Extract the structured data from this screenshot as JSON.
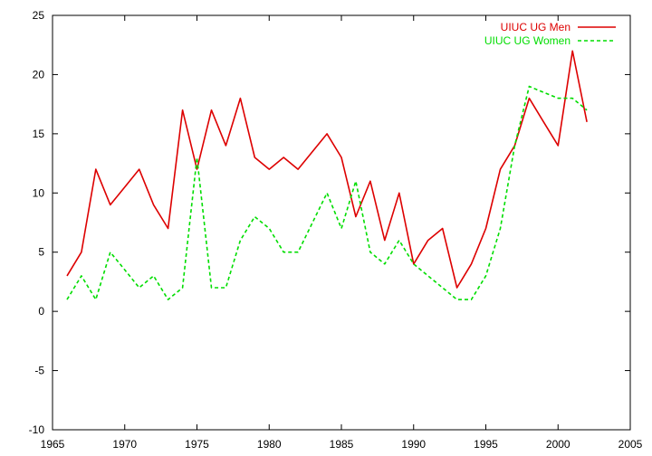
{
  "chart_data": {
    "type": "line",
    "title": "",
    "xlabel": "",
    "ylabel": "",
    "xlim": [
      1965,
      2005
    ],
    "ylim": [
      -10,
      25
    ],
    "x_ticks": [
      1965,
      1970,
      1975,
      1980,
      1985,
      1990,
      1995,
      2000,
      2005
    ],
    "y_ticks": [
      -10,
      -5,
      0,
      5,
      10,
      15,
      20,
      25
    ],
    "grid": false,
    "legend_position": "top-right",
    "series": [
      {
        "name": "UIUC UG Men",
        "color": "#dd0000",
        "dash": "solid",
        "x": [
          1966,
          1967,
          1968,
          1969,
          1970,
          1971,
          1972,
          1973,
          1974,
          1975,
          1976,
          1977,
          1978,
          1979,
          1980,
          1981,
          1982,
          1983,
          1984,
          1985,
          1986,
          1987,
          1988,
          1989,
          1990,
          1991,
          1992,
          1993,
          1994,
          1995,
          1996,
          1997,
          1998,
          1999,
          2000,
          2001,
          2002
        ],
        "y": [
          3,
          5,
          12,
          9,
          10.5,
          12,
          9,
          7,
          17,
          12,
          17,
          14,
          18,
          13,
          12,
          13,
          12,
          13.5,
          15,
          13,
          8,
          11,
          6,
          10,
          4,
          6,
          7,
          2,
          4,
          7,
          12,
          14,
          18,
          16,
          14,
          22,
          16
        ]
      },
      {
        "name": "UIUC UG Women",
        "color": "#00dd00",
        "dash": "dashed",
        "x": [
          1966,
          1967,
          1968,
          1969,
          1970,
          1971,
          1972,
          1973,
          1974,
          1975,
          1976,
          1977,
          1978,
          1979,
          1980,
          1981,
          1982,
          1983,
          1984,
          1985,
          1986,
          1987,
          1988,
          1989,
          1990,
          1991,
          1992,
          1993,
          1994,
          1995,
          1996,
          1997,
          1998,
          1999,
          2000,
          2001,
          2002
        ],
        "y": [
          1,
          3,
          1,
          5,
          3.5,
          2,
          3,
          1,
          2,
          13,
          2,
          2,
          6,
          8,
          7,
          5,
          5,
          7.5,
          10,
          7,
          11,
          5,
          4,
          6,
          4,
          3,
          2,
          1,
          1,
          3,
          7,
          14,
          19,
          18.5,
          18,
          18,
          17
        ]
      }
    ]
  }
}
